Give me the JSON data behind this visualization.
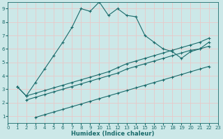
{
  "xlabel": "Humidex (Indice chaleur)",
  "xlim": [
    0,
    23
  ],
  "ylim": [
    0.5,
    9.5
  ],
  "xticks": [
    0,
    1,
    2,
    3,
    4,
    5,
    6,
    7,
    8,
    9,
    10,
    11,
    12,
    13,
    14,
    15,
    16,
    17,
    18,
    19,
    20,
    21,
    22,
    23
  ],
  "yticks": [
    1,
    2,
    3,
    4,
    5,
    6,
    7,
    8,
    9
  ],
  "bg_color": "#cce8e8",
  "grid_color": "#e8c8c8",
  "line_color": "#1a6b6b",
  "curve1_x": [
    1,
    2,
    3,
    4,
    5,
    6,
    7,
    8,
    9,
    10,
    11,
    12,
    13,
    14,
    15,
    16,
    17,
    18,
    19,
    20,
    21,
    22
  ],
  "curve1_y": [
    3.2,
    2.5,
    3.5,
    4.5,
    5.5,
    6.5,
    7.6,
    9.0,
    8.8,
    9.5,
    8.5,
    9.0,
    8.5,
    8.4,
    7.0,
    6.5,
    6.0,
    5.8,
    5.3,
    5.8,
    6.0,
    6.5
  ],
  "curve2_x": [
    1,
    2,
    3,
    4,
    5,
    6,
    7,
    8,
    9,
    10,
    11,
    12,
    13,
    14,
    15,
    16,
    17,
    18,
    19,
    20,
    21,
    22
  ],
  "curve2_y": [
    3.2,
    2.5,
    2.7,
    2.9,
    3.1,
    3.3,
    3.5,
    3.7,
    3.9,
    4.1,
    4.3,
    4.6,
    4.9,
    5.1,
    5.3,
    5.5,
    5.7,
    5.9,
    6.1,
    6.3,
    6.5,
    6.8
  ],
  "curve3_x": [
    2,
    3,
    4,
    5,
    6,
    7,
    8,
    9,
    10,
    11,
    12,
    13,
    14,
    15,
    16,
    17,
    18,
    19,
    20,
    21,
    22
  ],
  "curve3_y": [
    2.2,
    2.4,
    2.6,
    2.8,
    3.0,
    3.2,
    3.4,
    3.6,
    3.8,
    4.0,
    4.2,
    4.5,
    4.7,
    4.9,
    5.1,
    5.3,
    5.5,
    5.7,
    5.9,
    6.0,
    6.2
  ],
  "curve4_x": [
    3,
    4,
    5,
    6,
    7,
    8,
    9,
    10,
    11,
    12,
    13,
    14,
    15,
    16,
    17,
    18,
    19,
    20,
    21,
    22
  ],
  "curve4_y": [
    0.9,
    1.1,
    1.3,
    1.5,
    1.7,
    1.9,
    2.1,
    2.3,
    2.5,
    2.7,
    2.9,
    3.1,
    3.3,
    3.5,
    3.7,
    3.9,
    4.1,
    4.3,
    4.5,
    4.7
  ]
}
